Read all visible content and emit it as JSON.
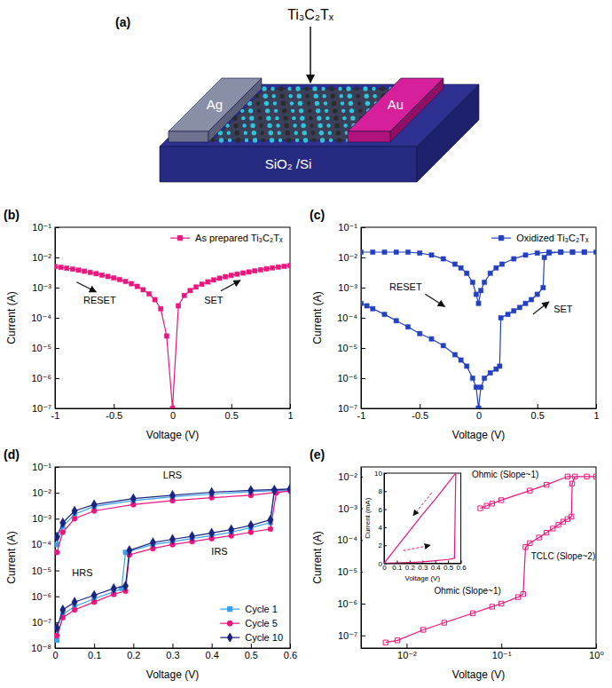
{
  "diagram": {
    "panel_label": "(a)",
    "flake": "Ti₃C₂Tₓ",
    "left_electrode": "Ag",
    "right_electrode": "Au",
    "substrate": "SiO₂ /Si"
  },
  "chart_data": [
    {
      "type": "line",
      "panel_label": "(b)",
      "x_label": "Voltage (V)",
      "y_label": "Current (A)",
      "log": "y",
      "xlim": [
        -1,
        1
      ],
      "ylim": [
        1e-07,
        0.1
      ],
      "xticks": [
        -1,
        -0.5,
        0,
        0.5,
        1
      ],
      "yticks": [
        {
          "value": 1e-07,
          "label": "10⁻⁷"
        },
        {
          "value": 1e-06,
          "label": "10⁻⁶"
        },
        {
          "value": 1e-05,
          "label": "10⁻⁵"
        },
        {
          "value": 0.0001,
          "label": "10⁻⁴"
        },
        {
          "value": 0.001,
          "label": "10⁻³"
        },
        {
          "value": 0.01,
          "label": "10⁻²"
        },
        {
          "value": 0.1,
          "label": "10⁻¹"
        }
      ],
      "legend": "upper right",
      "x": [
        -1,
        -0.95,
        -0.9,
        -0.85,
        -0.8,
        -0.75,
        -0.7,
        -0.65,
        -0.6,
        -0.55,
        -0.5,
        -0.45,
        -0.4,
        -0.35,
        -0.3,
        -0.25,
        -0.2,
        -0.15,
        -0.1,
        -0.05,
        0,
        0.05,
        0.1,
        0.15,
        0.2,
        0.25,
        0.3,
        0.35,
        0.4,
        0.45,
        0.5,
        0.55,
        0.6,
        0.65,
        0.7,
        0.75,
        0.8,
        0.85,
        0.9,
        0.95,
        1
      ],
      "series": [
        {
          "name": "As prepared Ti₃C₂Tₓ",
          "color": "#e8177d",
          "marker": "square",
          "line_style": "solid",
          "values": [
            0.005,
            0.0047,
            0.0044,
            0.0041,
            0.0038,
            0.0035,
            0.0032,
            0.0029,
            0.0026,
            0.00235,
            0.0021,
            0.00185,
            0.0016,
            0.00135,
            0.0011,
            0.00085,
            0.00062,
            0.0004,
            0.0002,
            2.5e-05,
            1e-07,
            0.00025,
            0.00055,
            0.0008,
            0.00105,
            0.0013,
            0.00155,
            0.0018,
            0.00205,
            0.0023,
            0.00255,
            0.0028,
            0.00305,
            0.0033,
            0.0036,
            0.0039,
            0.0042,
            0.0045,
            0.0048,
            0.0051,
            0.0054
          ]
        }
      ],
      "annotations": [
        {
          "text": "RESET",
          "x": -0.62,
          "y": 0.0003
        },
        {
          "text": "SET",
          "x": 0.35,
          "y": 0.0003
        }
      ]
    },
    {
      "type": "line",
      "panel_label": "(c)",
      "x_label": "Voltage (V)",
      "y_label": "Current (A)",
      "log": "y",
      "xlim": [
        -1,
        1
      ],
      "ylim": [
        1e-07,
        0.1
      ],
      "xticks": [
        -1,
        -0.5,
        0,
        0.5,
        1
      ],
      "yticks": [
        {
          "value": 1e-07,
          "label": "10⁻⁷"
        },
        {
          "value": 1e-06,
          "label": "10⁻⁶"
        },
        {
          "value": 1e-05,
          "label": "10⁻⁵"
        },
        {
          "value": 0.0001,
          "label": "10⁻⁴"
        },
        {
          "value": 0.001,
          "label": "10⁻³"
        },
        {
          "value": 0.01,
          "label": "10⁻²"
        },
        {
          "value": 0.1,
          "label": "10⁻¹"
        }
      ],
      "legend": "upper right",
      "x": [
        0,
        0.02,
        0.05,
        0.1,
        0.15,
        0.18,
        0.19,
        0.25,
        0.3,
        0.35,
        0.4,
        0.45,
        0.5,
        0.55,
        0.56,
        0.6,
        0.7,
        0.8,
        0.9,
        1,
        0.9,
        0.8,
        0.7,
        0.6,
        0.5,
        0.4,
        0.3,
        0.2,
        0.15,
        0.1,
        0.05,
        0.02,
        0,
        -0.02,
        -0.05,
        -0.1,
        -0.15,
        -0.2,
        -0.3,
        -0.4,
        -0.5,
        -0.6,
        -0.7,
        -0.8,
        -0.9,
        -1,
        -1,
        -0.95,
        -0.9,
        -0.8,
        -0.7,
        -0.6,
        -0.5,
        -0.4,
        -0.3,
        -0.2,
        -0.15,
        -0.1,
        -0.05,
        -0.02,
        0
      ],
      "series": [
        {
          "name": "Oxidized Ti₃C₂Tₓ",
          "color": "#2340c0",
          "marker": "square",
          "line_style": "solid",
          "values": [
            1e-07,
            5e-07,
            1e-06,
            1.5e-06,
            2e-06,
            2.5e-06,
            0.0001,
            0.00013,
            0.00017,
            0.00022,
            0.0003,
            0.0004,
            0.0006,
            0.001,
            0.01,
            0.014,
            0.015,
            0.015,
            0.015,
            0.015,
            0.015,
            0.015,
            0.015,
            0.015,
            0.014,
            0.012,
            0.009,
            0.006,
            0.0045,
            0.003,
            0.0015,
            0.0008,
            0.0003,
            0.0006,
            0.0015,
            0.003,
            0.0045,
            0.006,
            0.009,
            0.012,
            0.014,
            0.015,
            0.015,
            0.015,
            0.015,
            0.015,
            0.0003,
            0.00025,
            0.0002,
            0.00013,
            8e-05,
            5e-05,
            3e-05,
            2e-05,
            1.2e-05,
            6e-06,
            4e-06,
            2.5e-06,
            1e-06,
            5e-07,
            1e-07
          ]
        }
      ],
      "annotations": [
        {
          "text": "RESET",
          "x": -0.62,
          "y": 0.0008
        },
        {
          "text": "SET",
          "x": 0.72,
          "y": 0.00015
        }
      ]
    },
    {
      "type": "line",
      "panel_label": "(d)",
      "x_label": "Voltage (V)",
      "y_label": "Current (A)",
      "log": "y",
      "xlim": [
        0,
        0.6
      ],
      "ylim": [
        1e-08,
        0.1
      ],
      "xticks": [
        0,
        0.1,
        0.2,
        0.3,
        0.4,
        0.5,
        0.6
      ],
      "yticks": [
        {
          "value": 1e-08,
          "label": "10⁻⁸"
        },
        {
          "value": 1e-07,
          "label": "10⁻⁷"
        },
        {
          "value": 1e-06,
          "label": "10⁻⁶"
        },
        {
          "value": 1e-05,
          "label": "10⁻⁵"
        },
        {
          "value": 0.0001,
          "label": "10⁻⁴"
        },
        {
          "value": 0.001,
          "label": "10⁻³"
        },
        {
          "value": 0.01,
          "label": "10⁻²"
        },
        {
          "value": 0.1,
          "label": "10⁻¹"
        }
      ],
      "legend": "lower right",
      "series": [
        {
          "name": "Cycle 1",
          "color": "#3aa0e8",
          "marker": "square",
          "line_style": "solid",
          "x": [
            0.005,
            0.02,
            0.05,
            0.1,
            0.15,
            0.17,
            0.18,
            0.25,
            0.3,
            0.35,
            0.4,
            0.45,
            0.5,
            0.55,
            0.56,
            0.6,
            0.5,
            0.4,
            0.3,
            0.2,
            0.1,
            0.05,
            0.02,
            0.005
          ],
          "values": [
            2e-08,
            2e-07,
            4e-07,
            8e-07,
            1.5e-06,
            2e-06,
            5e-05,
            0.0001,
            0.00013,
            0.00017,
            0.00022,
            0.0003,
            0.00045,
            0.0007,
            0.012,
            0.013,
            0.011,
            0.009,
            0.007,
            0.005,
            0.003,
            0.0015,
            0.0005,
            0.0001
          ]
        },
        {
          "name": "Cycle 5",
          "color": "#e8177d",
          "marker": "circle",
          "line_style": "solid",
          "x": [
            0.005,
            0.02,
            0.05,
            0.1,
            0.15,
            0.18,
            0.19,
            0.25,
            0.3,
            0.35,
            0.4,
            0.45,
            0.5,
            0.55,
            0.565,
            0.6,
            0.5,
            0.4,
            0.3,
            0.2,
            0.1,
            0.05,
            0.02,
            0.005
          ],
          "values": [
            3e-08,
            1.5e-07,
            3e-07,
            6e-07,
            1.2e-06,
            1.6e-06,
            4e-05,
            7e-05,
            0.0001,
            0.00013,
            0.00017,
            0.00022,
            0.0003,
            0.0004,
            0.01,
            0.012,
            0.008,
            0.0065,
            0.005,
            0.0035,
            0.002,
            0.001,
            0.0003,
            5e-05
          ]
        },
        {
          "name": "Cycle 10",
          "color": "#1a237e",
          "marker": "diamond",
          "line_style": "solid",
          "x": [
            0.005,
            0.02,
            0.05,
            0.1,
            0.15,
            0.18,
            0.19,
            0.25,
            0.3,
            0.35,
            0.4,
            0.45,
            0.5,
            0.55,
            0.56,
            0.6,
            0.5,
            0.4,
            0.3,
            0.2,
            0.1,
            0.05,
            0.02,
            0.005
          ],
          "values": [
            6e-08,
            3e-07,
            6e-07,
            1.1e-06,
            2e-06,
            2.5e-06,
            6e-05,
            0.00012,
            0.00016,
            0.00021,
            0.00028,
            0.00038,
            0.00055,
            0.0009,
            0.013,
            0.014,
            0.0125,
            0.0105,
            0.008,
            0.006,
            0.0035,
            0.002,
            0.0007,
            0.0002
          ]
        }
      ],
      "annotations": [
        {
          "text": "LRS",
          "x": 0.3,
          "y": 0.035
        },
        {
          "text": "IRS",
          "x": 0.42,
          "y": 4e-05
        },
        {
          "text": "HRS",
          "x": 0.07,
          "y": 6e-06
        }
      ]
    },
    {
      "type": "line",
      "panel_label": "(e)",
      "x_label": "Voltage (V)",
      "y_label": "Current (A)",
      "log": true,
      "xlim": [
        0.0033,
        1
      ],
      "ylim": [
        4e-08,
        0.02
      ],
      "xticks": [
        {
          "value": 0.01,
          "label": "10⁻²"
        },
        {
          "value": 0.1,
          "label": "10⁻¹"
        },
        {
          "value": 1,
          "label": "10⁰"
        }
      ],
      "yticks": [
        {
          "value": 1e-07,
          "label": "10⁻⁷"
        },
        {
          "value": 1e-06,
          "label": "10⁻⁶"
        },
        {
          "value": 1e-05,
          "label": "10⁻⁵"
        },
        {
          "value": 0.0001,
          "label": "10⁻⁴"
        },
        {
          "value": 0.001,
          "label": "10⁻³"
        },
        {
          "value": 0.01,
          "label": "10⁻²"
        }
      ],
      "x": [
        0.006,
        0.008,
        0.015,
        0.025,
        0.05,
        0.08,
        0.1,
        0.15,
        0.17,
        0.18,
        0.2,
        0.25,
        0.3,
        0.35,
        0.4,
        0.45,
        0.5,
        0.55,
        0.56,
        0.6,
        0.8,
        1,
        0.5,
        0.3,
        0.2,
        0.1,
        0.08,
        0.07,
        0.06
      ],
      "series": [
        {
          "color": "#e8177d",
          "marker": "square-open",
          "line_style": "solid",
          "values": [
            6e-08,
            7e-08,
            1.5e-07,
            2.5e-07,
            5e-07,
            8e-07,
            1e-06,
            1.6e-06,
            2e-06,
            6e-05,
            8e-05,
            0.00012,
            0.00017,
            0.00023,
            0.0003,
            0.00038,
            0.00046,
            0.00055,
            0.006,
            0.01,
            0.01,
            0.01,
            0.01,
            0.0055,
            0.0036,
            0.0018,
            0.0014,
            0.0012,
            0.001
          ]
        }
      ],
      "annotations": [
        {
          "text": "Ohmic (Slope~1)",
          "x": 0.11,
          "y": 0.009
        },
        {
          "text": "TCLC (Slope~2)",
          "x": 0.45,
          "y": 2.5e-05
        },
        {
          "text": "Ohmic (Slope~1)",
          "x": 0.044,
          "y": 2e-06
        }
      ],
      "inset": {
        "type": "line",
        "x_label": "Voltage (V)",
        "y_label": "Current (mA)",
        "xlim": [
          0,
          0.6
        ],
        "ylim": [
          0,
          10
        ],
        "xticks": [
          0,
          0.1,
          0.2,
          0.3,
          0.4,
          0.5,
          0.6
        ],
        "yticks": [
          0,
          2,
          4,
          6,
          8,
          10
        ],
        "x": [
          0,
          0.1,
          0.2,
          0.3,
          0.4,
          0.5,
          0.55,
          0.56,
          0.5,
          0.4,
          0.3,
          0.2,
          0.1,
          0
        ],
        "series": [
          {
            "color": "#e8177d",
            "line_style": "solid",
            "values": [
              0,
              0.05,
              0.1,
              0.17,
              0.28,
              0.42,
              0.55,
              10,
              8.9,
              7.1,
              5.4,
              3.6,
              1.8,
              0
            ]
          }
        ]
      }
    }
  ]
}
